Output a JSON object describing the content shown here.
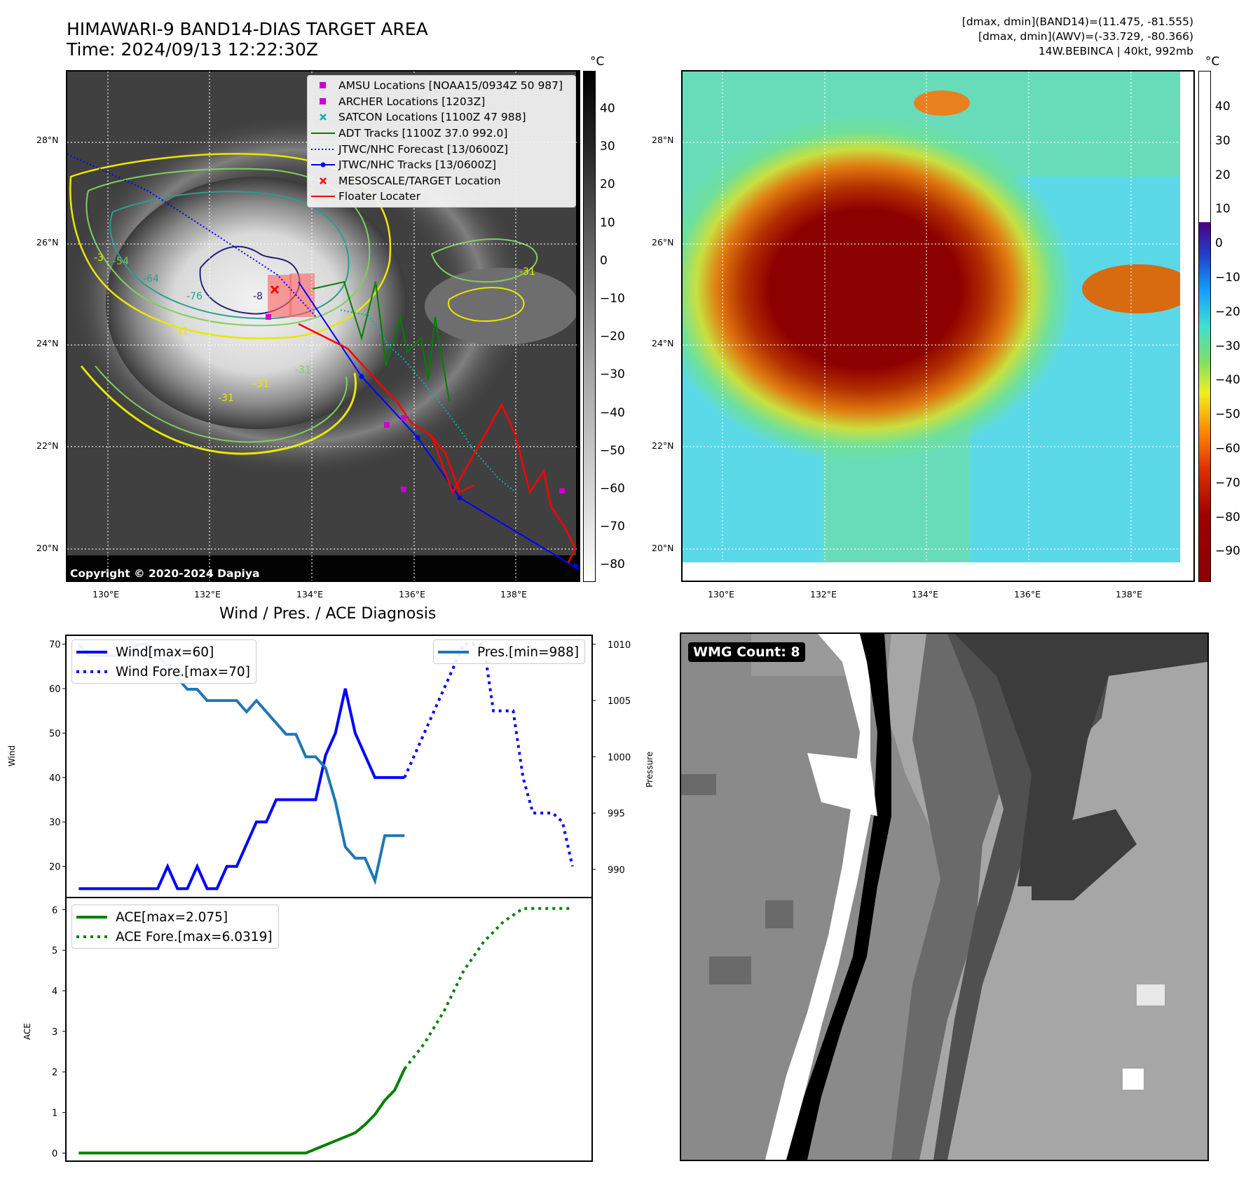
{
  "header": {
    "title_line1": "HIMAWARI-9 BAND14-DIAS TARGET AREA",
    "title_line2": "Time: 2024/09/13 12:22:30Z",
    "info_line1": "[dmax, dmin](BAND14)=(11.475, -81.555)",
    "info_line2": "[dmax, dmin](AWV)=(-33.729, -80.366)",
    "info_line3": "14W.BEBINCA | 40kt, 992mb"
  },
  "map": {
    "lat_labels": [
      "28°N",
      "26°N",
      "24°N",
      "22°N",
      "20°N"
    ],
    "lon_labels": [
      "130°E",
      "132°E",
      "134°E",
      "136°E",
      "138°E"
    ],
    "copyright": "Copyright © 2020-2024 Dapiya",
    "contour_labels": [
      "-54",
      "-64",
      "-76",
      "-8",
      "-31",
      "-31",
      "-31",
      "-31",
      "-31",
      "-3"
    ],
    "legend": [
      {
        "label": "AMSU Locations [NOAA15/0934Z 50 987]",
        "symbol": "square",
        "color": "#cc00cc"
      },
      {
        "label": "ARCHER Locations [1203Z]",
        "symbol": "square",
        "color": "#cc00cc"
      },
      {
        "label": "SATCON Locations [1100Z 47 988]",
        "symbol": "x",
        "color": "#00b3b3"
      },
      {
        "label": "ADT Tracks [1100Z 37.0 992.0]",
        "symbol": "line",
        "color": "#008000"
      },
      {
        "label": "JTWC/NHC Forecast [13/0600Z]",
        "symbol": "dotted",
        "color": "#0000ff"
      },
      {
        "label": "JTWC/NHC Tracks [13/0600Z]",
        "symbol": "line-dot",
        "color": "#0000ff"
      },
      {
        "label": "MESOSCALE/TARGET Location",
        "symbol": "x",
        "color": "#ff0000"
      },
      {
        "label": "Floater Locater",
        "symbol": "line",
        "color": "#ff0000"
      }
    ]
  },
  "colorbar_ir": {
    "unit": "°C",
    "ticks": [
      "40",
      "30",
      "20",
      "10",
      "0",
      "−10",
      "−20",
      "−30",
      "−40",
      "−50",
      "−60",
      "−70",
      "−80"
    ]
  },
  "colorbar_awv": {
    "unit": "°C",
    "ticks": [
      "40",
      "30",
      "20",
      "10",
      "0",
      "−10",
      "−20",
      "−30",
      "−40",
      "−50",
      "−60",
      "−70",
      "−80",
      "−90"
    ]
  },
  "wmg": {
    "label": "WMG Count: 8"
  },
  "chart_data": [
    {
      "type": "line",
      "title": "Wind / Pres. / ACE Diagnosis",
      "ylabel": "Wind",
      "y2label": "Pressure",
      "ylim": [
        13,
        72
      ],
      "y2lim": [
        987.5,
        1010.8
      ],
      "yticks": [
        "70",
        "60",
        "50",
        "40",
        "30",
        "20"
      ],
      "y2ticks": [
        "1010",
        "1005",
        "1000",
        "995",
        "990"
      ],
      "series": [
        {
          "name": "Wind[max=60]",
          "axis": "left",
          "style": "solid",
          "color": "#0000ff",
          "x": [
            0,
            1,
            2,
            3,
            4,
            5,
            6,
            7,
            8,
            9,
            10,
            11,
            12,
            13,
            14,
            15,
            16,
            17,
            18,
            19,
            20,
            21,
            22,
            23,
            24,
            25,
            26,
            27,
            28,
            29,
            30,
            31,
            32,
            33
          ],
          "values": [
            15,
            15,
            15,
            15,
            15,
            15,
            15,
            15,
            15,
            20,
            15,
            15,
            20,
            15,
            15,
            20,
            20,
            25,
            30,
            30,
            35,
            35,
            35,
            35,
            35,
            45,
            50,
            60,
            50,
            45,
            40,
            40,
            40,
            40
          ]
        },
        {
          "name": "Wind Fore.[max=70]",
          "axis": "left",
          "style": "dotted",
          "color": "#0000ff",
          "x": [
            33,
            35,
            37,
            39,
            40,
            41,
            42,
            43,
            44,
            45,
            46,
            47,
            48,
            49,
            50
          ],
          "values": [
            40,
            50,
            60,
            70,
            70,
            70,
            55,
            55,
            55,
            40,
            32,
            32,
            32,
            30,
            20
          ]
        },
        {
          "name": "Pres.[min=988]",
          "axis": "right",
          "style": "solid",
          "color": "#1f77b4",
          "x": [
            0,
            1,
            2,
            3,
            4,
            5,
            6,
            7,
            8,
            9,
            10,
            11,
            12,
            13,
            14,
            15,
            16,
            17,
            18,
            19,
            20,
            21,
            22,
            23,
            24,
            25,
            26,
            27,
            28,
            29,
            30,
            31,
            32,
            33
          ],
          "values": [
            1010,
            1009,
            1009,
            1009,
            1009,
            1009,
            1010,
            1010,
            1009,
            1008,
            1007,
            1006,
            1006,
            1005,
            1005,
            1005,
            1005,
            1004,
            1005,
            1004,
            1003,
            1002,
            1002,
            1000,
            1000,
            999,
            996,
            992,
            991,
            991,
            989,
            993,
            993,
            993
          ]
        }
      ]
    },
    {
      "type": "line",
      "ylabel": "ACE",
      "ylim": [
        -0.2,
        6.3
      ],
      "yticks": [
        "6",
        "5",
        "4",
        "3",
        "2",
        "1",
        "0"
      ],
      "series": [
        {
          "name": "ACE[max=2.075]",
          "style": "solid",
          "color": "#008000",
          "x": [
            0,
            2,
            4,
            6,
            8,
            10,
            12,
            14,
            16,
            18,
            20,
            21,
            22,
            23,
            24,
            25,
            26,
            27,
            28,
            29,
            30,
            31,
            32,
            33
          ],
          "values": [
            0,
            0,
            0,
            0,
            0,
            0,
            0,
            0,
            0,
            0,
            0,
            0,
            0,
            0,
            0.1,
            0.2,
            0.3,
            0.4,
            0.5,
            0.7,
            0.95,
            1.3,
            1.55,
            2.075
          ]
        },
        {
          "name": "ACE Fore.[max=6.0319]",
          "style": "dotted",
          "color": "#008000",
          "x": [
            33,
            35,
            37,
            39,
            41,
            43,
            45,
            47,
            48,
            50
          ],
          "values": [
            2.075,
            2.7,
            3.5,
            4.5,
            5.2,
            5.7,
            6.03,
            6.03,
            6.03,
            6.03
          ]
        }
      ]
    }
  ]
}
